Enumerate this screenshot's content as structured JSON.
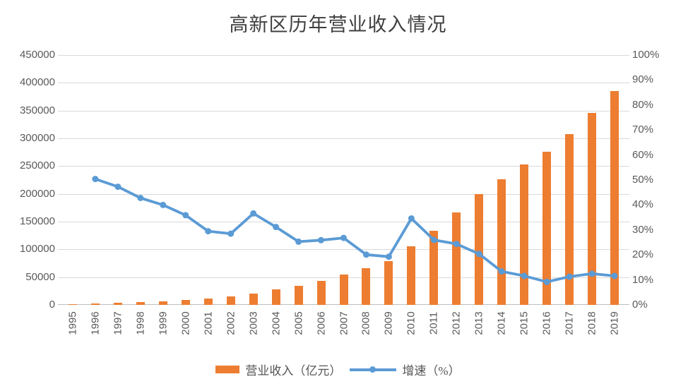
{
  "page": {
    "background": "#ffffff"
  },
  "chart_data": {
    "type": "bar+line",
    "title": "高新区历年营业收入情况",
    "categories": [
      "1995",
      "1996",
      "1997",
      "1998",
      "1999",
      "2000",
      "2001",
      "2002",
      "2003",
      "2004",
      "2005",
      "2006",
      "2007",
      "2008",
      "2009",
      "2010",
      "2011",
      "2012",
      "2013",
      "2014",
      "2015",
      "2016",
      "2017",
      "2018",
      "2019"
    ],
    "series": [
      {
        "name": "营业收入（亿元）",
        "type": "bar",
        "y_axis": "left",
        "color": "#ed7d31",
        "values": [
          1529,
          2300,
          3388,
          4839,
          6775,
          9209,
          11928,
          15326,
          20939,
          27466,
          34416,
          43320,
          54925,
          65986,
          78707,
          105917,
          133428,
          166034,
          199934,
          226726,
          252963,
          276244,
          307397,
          345757,
          385770
        ]
      },
      {
        "name": "增速（%）",
        "type": "line",
        "y_axis": "right",
        "color": "#5b9bd5",
        "marker": "circle",
        "values": [
          null,
          50.4,
          47.3,
          42.8,
          40.0,
          35.9,
          29.5,
          28.5,
          36.6,
          31.2,
          25.3,
          25.9,
          26.8,
          20.1,
          19.3,
          34.6,
          26.0,
          24.4,
          20.4,
          13.4,
          11.6,
          9.2,
          11.3,
          12.5,
          11.6
        ]
      }
    ],
    "left_axis": {
      "min": 0,
      "max": 450000,
      "step": 50000,
      "tick_labels": [
        "0",
        "50000",
        "100000",
        "150000",
        "200000",
        "250000",
        "300000",
        "350000",
        "400000",
        "450000"
      ]
    },
    "right_axis": {
      "min": 0,
      "max": 100,
      "step": 10,
      "tick_labels": [
        "0%",
        "10%",
        "20%",
        "30%",
        "40%",
        "50%",
        "60%",
        "70%",
        "80%",
        "90%",
        "100%"
      ]
    },
    "grid": true,
    "legend_position": "bottom",
    "colors": {
      "grid": "#d9d9d9",
      "axis_line": "#bfbfbf",
      "tick_text": "#595959",
      "title_text": "#3f3f3f"
    }
  }
}
